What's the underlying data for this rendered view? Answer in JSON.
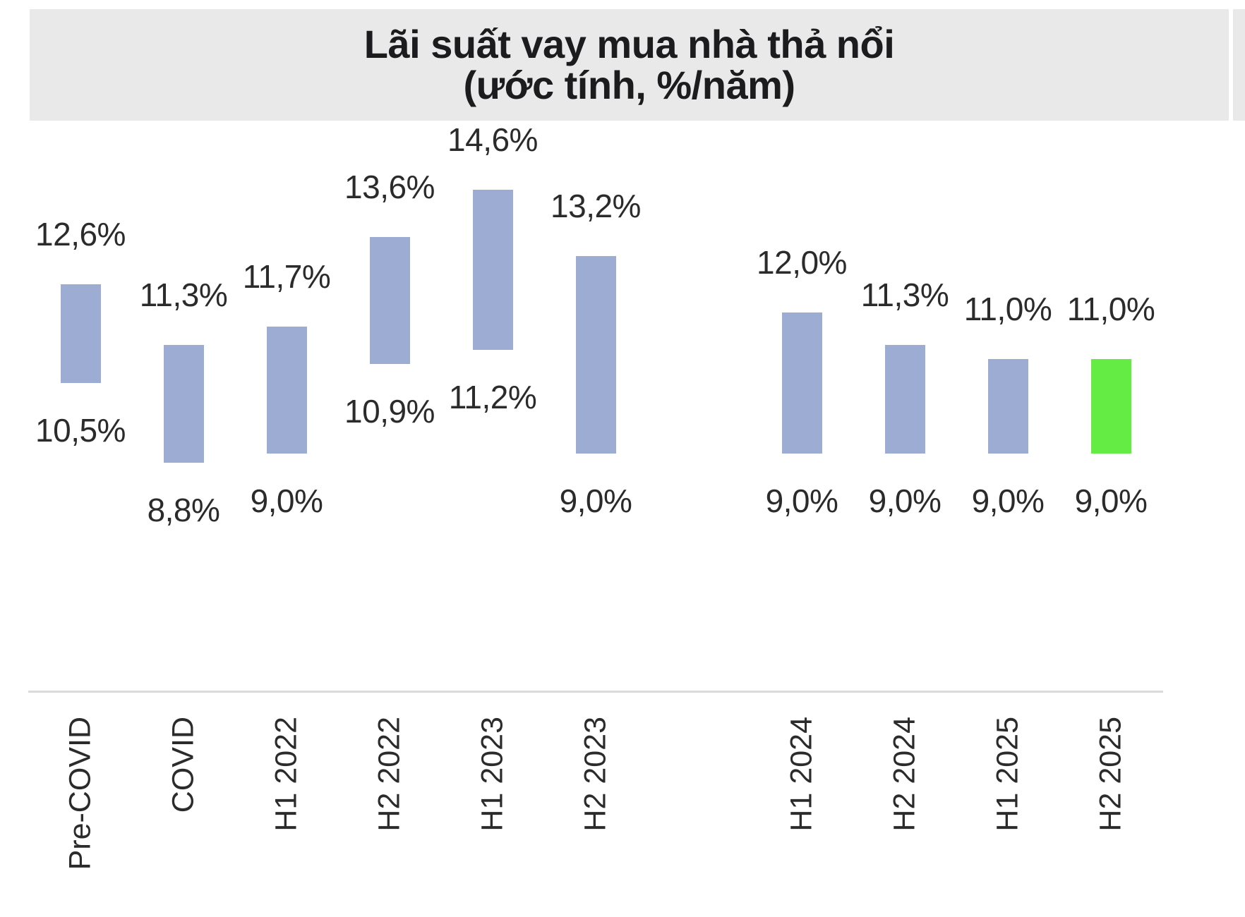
{
  "chart_data": {
    "type": "bar",
    "subtype": "floating-range-column",
    "title": "Lãi suất vay mua nhà thả nổi",
    "subtitle": "(ước tính, %/năm)",
    "ylabel": "",
    "xlabel": "",
    "unit": "%/năm",
    "decimal_separator": ",",
    "legend": "none",
    "gridlines": false,
    "ylim": [
      8.8,
      14.6
    ],
    "categories": [
      "Pre-COVID",
      "COVID",
      "H1 2022",
      "H2 2022",
      "H1 2023",
      "H2 2023",
      "H1 2024",
      "H2 2024",
      "H1 2025",
      "H2 2025"
    ],
    "bars": [
      {
        "category": "Pre-COVID",
        "slot": 0,
        "low": 10.5,
        "high": 12.6,
        "low_label": "10,5%",
        "high_label": "12,6%",
        "highlighted": false
      },
      {
        "category": "COVID",
        "slot": 1,
        "low": 8.8,
        "high": 11.3,
        "low_label": "8,8%",
        "high_label": "11,3%",
        "highlighted": false
      },
      {
        "category": "H1 2022",
        "slot": 2,
        "low": 9.0,
        "high": 11.7,
        "low_label": "9,0%",
        "high_label": "11,7%",
        "highlighted": false
      },
      {
        "category": "H2 2022",
        "slot": 3,
        "low": 10.9,
        "high": 13.6,
        "low_label": "10,9%",
        "high_label": "13,6%",
        "highlighted": false
      },
      {
        "category": "H1 2023",
        "slot": 4,
        "low": 11.2,
        "high": 14.6,
        "low_label": "11,2%",
        "high_label": "14,6%",
        "highlighted": false
      },
      {
        "category": "H2 2023",
        "slot": 5,
        "low": 9.0,
        "high": 13.2,
        "low_label": "9,0%",
        "high_label": "13,2%",
        "highlighted": false
      },
      {
        "category": "H1 2024",
        "slot": 7,
        "low": 9.0,
        "high": 12.0,
        "low_label": "9,0%",
        "high_label": "12,0%",
        "highlighted": false
      },
      {
        "category": "H2 2024",
        "slot": 8,
        "low": 9.0,
        "high": 11.3,
        "low_label": "9,0%",
        "high_label": "11,3%",
        "highlighted": false
      },
      {
        "category": "H1 2025",
        "slot": 9,
        "low": 9.0,
        "high": 11.0,
        "low_label": "9,0%",
        "high_label": "11,0%",
        "highlighted": false
      },
      {
        "category": "H2 2025",
        "slot": 10,
        "low": 9.0,
        "high": 11.0,
        "low_label": "9,0%",
        "high_label": "11,0%",
        "highlighted": true
      }
    ],
    "colors": {
      "bar": "#9CACD2",
      "highlight": "#64EC45",
      "title_band": "#E9E9E9",
      "axis_line": "#DADADA",
      "text": "#2B2B2B",
      "title_text": "#1C1C1E"
    }
  }
}
